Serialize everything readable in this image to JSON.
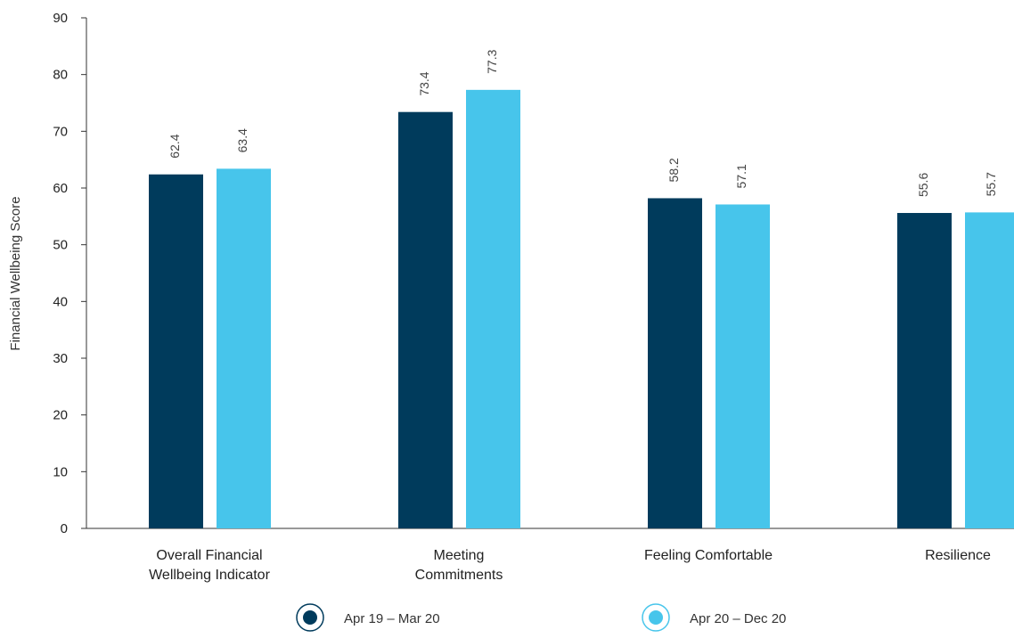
{
  "chart_data": {
    "type": "bar",
    "title": "",
    "xlabel": "",
    "ylabel": "Financial Wellbeing Score",
    "ylim": [
      0,
      90
    ],
    "yticks": [
      0,
      10,
      20,
      30,
      40,
      50,
      60,
      70,
      80,
      90
    ],
    "grid": false,
    "legend_position": "bottom",
    "categories": [
      [
        "Overall Financial",
        "Wellbeing Indicator"
      ],
      [
        "Meeting",
        "Commitments"
      ],
      [
        "Feeling Comfortable"
      ],
      [
        "Resilience"
      ]
    ],
    "series": [
      {
        "name": "Apr 19 – Mar 20",
        "color": "#003b5c",
        "values": [
          62.4,
          73.4,
          58.2,
          55.6
        ],
        "labels": [
          "62.4",
          "73.4",
          "58.2",
          "55.6"
        ]
      },
      {
        "name": "Apr 20 – Dec 20",
        "color": "#47c5eb",
        "values": [
          63.4,
          77.3,
          57.1,
          55.7
        ],
        "labels": [
          "63.4",
          "77.3",
          "57.1",
          "55.7"
        ]
      }
    ]
  }
}
